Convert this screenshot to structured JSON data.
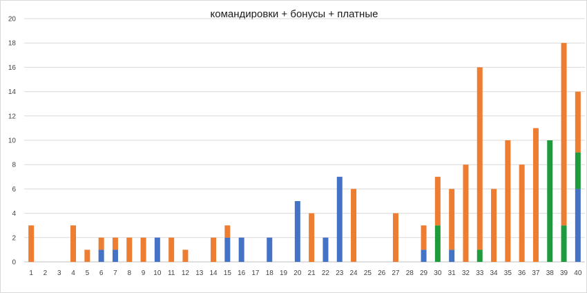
{
  "chart_data": {
    "type": "bar",
    "stacked": true,
    "title": "командировки + бонусы + платные",
    "xlabel": "",
    "ylabel": "",
    "ylim": [
      0,
      20
    ],
    "yticks": [
      0,
      2,
      4,
      6,
      8,
      10,
      12,
      14,
      16,
      18,
      20
    ],
    "grid": true,
    "legend": "none",
    "categories": [
      "1",
      "2",
      "3",
      "4",
      "5",
      "6",
      "7",
      "8",
      "9",
      "10",
      "11",
      "12",
      "13",
      "14",
      "15",
      "16",
      "17",
      "18",
      "19",
      "20",
      "21",
      "22",
      "23",
      "24",
      "25",
      "26",
      "27",
      "28",
      "29",
      "30",
      "31",
      "32",
      "33",
      "34",
      "35",
      "36",
      "37",
      "38",
      "39",
      "40"
    ],
    "series": [
      {
        "color": "#4472c4",
        "values": [
          0,
          0,
          0,
          0,
          0,
          1,
          1,
          0,
          0,
          2,
          0,
          0,
          0,
          0,
          2,
          2,
          0,
          2,
          0,
          5,
          0,
          2,
          7,
          0,
          0,
          0,
          0,
          0,
          1,
          0,
          1,
          0,
          0,
          0,
          0,
          0,
          0,
          0,
          0,
          6
        ]
      },
      {
        "color": "#1e9b3c",
        "values": [
          0,
          0,
          0,
          0,
          0,
          0,
          0,
          0,
          0,
          0,
          0,
          0,
          0,
          0,
          0,
          0,
          0,
          0,
          0,
          0,
          0,
          0,
          0,
          0,
          0,
          0,
          0,
          0,
          0,
          3,
          0,
          0,
          1,
          0,
          0,
          0,
          0,
          10,
          3,
          3
        ]
      },
      {
        "color": "#ed7d31",
        "values": [
          3,
          0,
          0,
          3,
          1,
          1,
          1,
          2,
          2,
          0,
          2,
          1,
          0,
          2,
          1,
          0,
          0,
          0,
          0,
          0,
          4,
          0,
          0,
          6,
          0,
          0,
          4,
          0,
          2,
          4,
          5,
          8,
          15,
          6,
          10,
          8,
          11,
          0,
          15,
          5
        ]
      }
    ]
  }
}
